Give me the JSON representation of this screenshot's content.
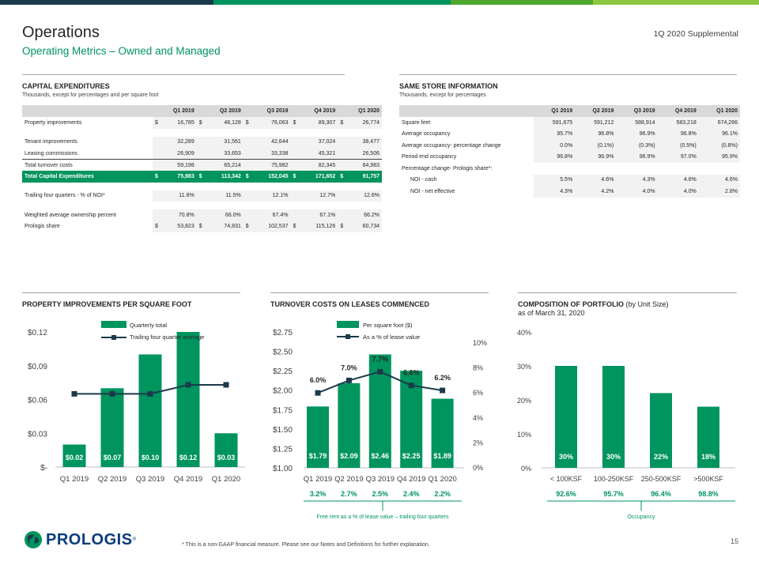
{
  "colors": {
    "green": "#00945e",
    "navy": "#1b3a4b",
    "topbar": [
      "#1b3a4b",
      "#00945e",
      "#4ea72e",
      "#8dc63f"
    ]
  },
  "header": {
    "title": "Operations",
    "subtitle": "Operating Metrics – Owned and Managed",
    "supplemental": "1Q 2020 Supplemental"
  },
  "capex": {
    "heading": "CAPITAL EXPENDITURES",
    "subheading": "Thousands, except for percentages and per square foot",
    "columns": [
      "Q1 2019",
      "Q2 2019",
      "Q3 2019",
      "Q4 2019",
      "Q1 2020"
    ],
    "rows": [
      {
        "label": "Property improvements",
        "cur": "$",
        "values": [
          "16,785",
          "48,128",
          "76,063",
          "89,307",
          "26,774"
        ],
        "style": "shade"
      },
      {
        "gap": true
      },
      {
        "label": "Tenant improvements",
        "values": [
          "32,289",
          "31,561",
          "42,644",
          "37,024",
          "38,477"
        ],
        "style": "shade"
      },
      {
        "label": "Leasing commissions",
        "values": [
          "26,909",
          "33,653",
          "33,338",
          "45,321",
          "26,506"
        ],
        "style": "shade uline"
      },
      {
        "label": "Total turnover costs",
        "values": [
          "59,198",
          "65,214",
          "75,982",
          "82,345",
          "64,983"
        ],
        "style": "shade"
      },
      {
        "label": "Total Capital Expenditures",
        "cur": "$",
        "values": [
          "75,983",
          "113,342",
          "152,045",
          "171,652",
          "91,757"
        ],
        "style": "total"
      },
      {
        "gap": true
      },
      {
        "label": "Trailing four quarters - % of NOI*",
        "values": [
          "11.8%",
          "11.5%",
          "12.1%",
          "12.7%",
          "12.6%"
        ],
        "style": "shade"
      },
      {
        "gap": true
      },
      {
        "label": "Weighted average ownership percent",
        "values": [
          "70.8%",
          "66.0%",
          "67.4%",
          "67.1%",
          "66.2%"
        ],
        "style": "shade"
      },
      {
        "label": "Prologis share",
        "cur": "$",
        "values": [
          "53,823",
          "74,831",
          "102,537",
          "115,126",
          "60,734"
        ],
        "style": "shade"
      }
    ]
  },
  "same_store": {
    "heading": "SAME STORE INFORMATION",
    "subheading": "Thousands, except for percentages",
    "columns": [
      "Q1 2019",
      "Q2 2019",
      "Q3 2019",
      "Q4 2019",
      "Q1 2020"
    ],
    "rows": [
      {
        "label": "Square feet",
        "values": [
          "591,675",
          "591,212",
          "588,914",
          "583,218",
          "674,266"
        ],
        "style": "shade"
      },
      {
        "label": "Average occupancy",
        "values": [
          "95.7%",
          "96.8%",
          "96.9%",
          "96.8%",
          "96.1%"
        ],
        "style": "shade"
      },
      {
        "label": "Average occupancy- percentage change",
        "values": [
          "0.0%",
          "(0.1%)",
          "(0.3%)",
          "(0.5%)",
          "(0.8%)"
        ],
        "style": "shade"
      },
      {
        "label": "Period end occupancy",
        "values": [
          "96.8%",
          "96.9%",
          "96.9%",
          "97.0%",
          "95.9%"
        ],
        "style": "shade"
      },
      {
        "label": "Percentage change- Prologis share*:",
        "values": [
          "",
          "",
          "",
          "",
          ""
        ],
        "style": ""
      },
      {
        "label": "NOI - cash",
        "indent": true,
        "values": [
          "5.5%",
          "4.6%",
          "4.3%",
          "4.6%",
          "4.6%"
        ],
        "style": "shade"
      },
      {
        "label": "NOI - net effective",
        "indent": true,
        "values": [
          "4.3%",
          "4.2%",
          "4.0%",
          "4.0%",
          "2.8%"
        ],
        "style": "shade"
      }
    ]
  },
  "chart_data": [
    {
      "type": "bar",
      "heading": "PROPERTY IMPROVEMENTS PER SQUARE FOOT",
      "categories": [
        "Q1 2019",
        "Q2 2019",
        "Q3 2019",
        "Q4 2019",
        "Q1 2020"
      ],
      "series": [
        {
          "name": "Quarterly total",
          "type": "bar",
          "values": [
            0.02,
            0.07,
            0.1,
            0.12,
            0.03
          ],
          "labels": [
            "$0.02",
            "$0.07",
            "$0.10",
            "$0.12",
            "$0.03"
          ]
        },
        {
          "name": "Trailing four quarter average",
          "type": "line",
          "values": [
            0.065,
            0.065,
            0.065,
            0.073,
            0.073
          ]
        }
      ],
      "ylim": [
        0,
        0.12
      ],
      "yticks": [
        "$-",
        "$0.03",
        "$0.06",
        "$0.09",
        "$0.12"
      ],
      "legend": "top"
    },
    {
      "type": "bar",
      "heading": "TURNOVER COSTS ON LEASES COMMENCED",
      "categories": [
        "Q1 2019",
        "Q2 2019",
        "Q3 2019",
        "Q4 2019",
        "Q1 2020"
      ],
      "series": [
        {
          "name": "Per square foot ($)",
          "type": "bar",
          "values": [
            1.79,
            2.09,
            2.46,
            2.25,
            1.89
          ],
          "labels": [
            "$1.79",
            "$2.09",
            "$2.46",
            "$2.25",
            "$1.89"
          ]
        },
        {
          "name": "As a % of lease value",
          "type": "line",
          "axis": "right",
          "values": [
            6.0,
            7.0,
            7.7,
            6.6,
            6.2
          ],
          "labels": [
            "6.0%",
            "7.0%",
            "7.7%",
            "6.6%",
            "6.2%"
          ]
        }
      ],
      "ylim": [
        1.0,
        2.75
      ],
      "yticks": [
        "$1.00",
        "$1.25",
        "$1.50",
        "$1.75",
        "$2.00",
        "$2.25",
        "$2.50",
        "$2.75"
      ],
      "y2lim": [
        0,
        10
      ],
      "y2ticks": [
        "0%",
        "2%",
        "4%",
        "6%",
        "8%",
        "10%"
      ],
      "free_rent": {
        "values": [
          "3.2%",
          "2.7%",
          "2.5%",
          "2.4%",
          "2.2%"
        ],
        "label": "Free rent as a % of lease value – trailing four quarters"
      },
      "legend": "top"
    },
    {
      "type": "bar",
      "heading": "COMPOSITION OF PORTFOLIO",
      "heading_suffix": "(by Unit Size)",
      "subheading": "as of March 31, 2020",
      "categories": [
        "< 100KSF",
        "100-250KSF",
        "250-500KSF",
        ">500KSF"
      ],
      "values": [
        30,
        30,
        22,
        18
      ],
      "labels": [
        "30%",
        "30%",
        "22%",
        "18%"
      ],
      "ylim": [
        0,
        40
      ],
      "yticks": [
        "0%",
        "10%",
        "20%",
        "30%",
        "40%"
      ],
      "occupancy": {
        "values": [
          "92.6%",
          "95.7%",
          "96.4%",
          "98.8%"
        ],
        "label": "Occupancy"
      }
    }
  ],
  "footer": {
    "footnote": "* This is a non-GAAP financial measure. Please see our Notes and Definitions for further explanation.",
    "page": "15",
    "logo": "PROLOGIS",
    "logo_reg": "®"
  }
}
